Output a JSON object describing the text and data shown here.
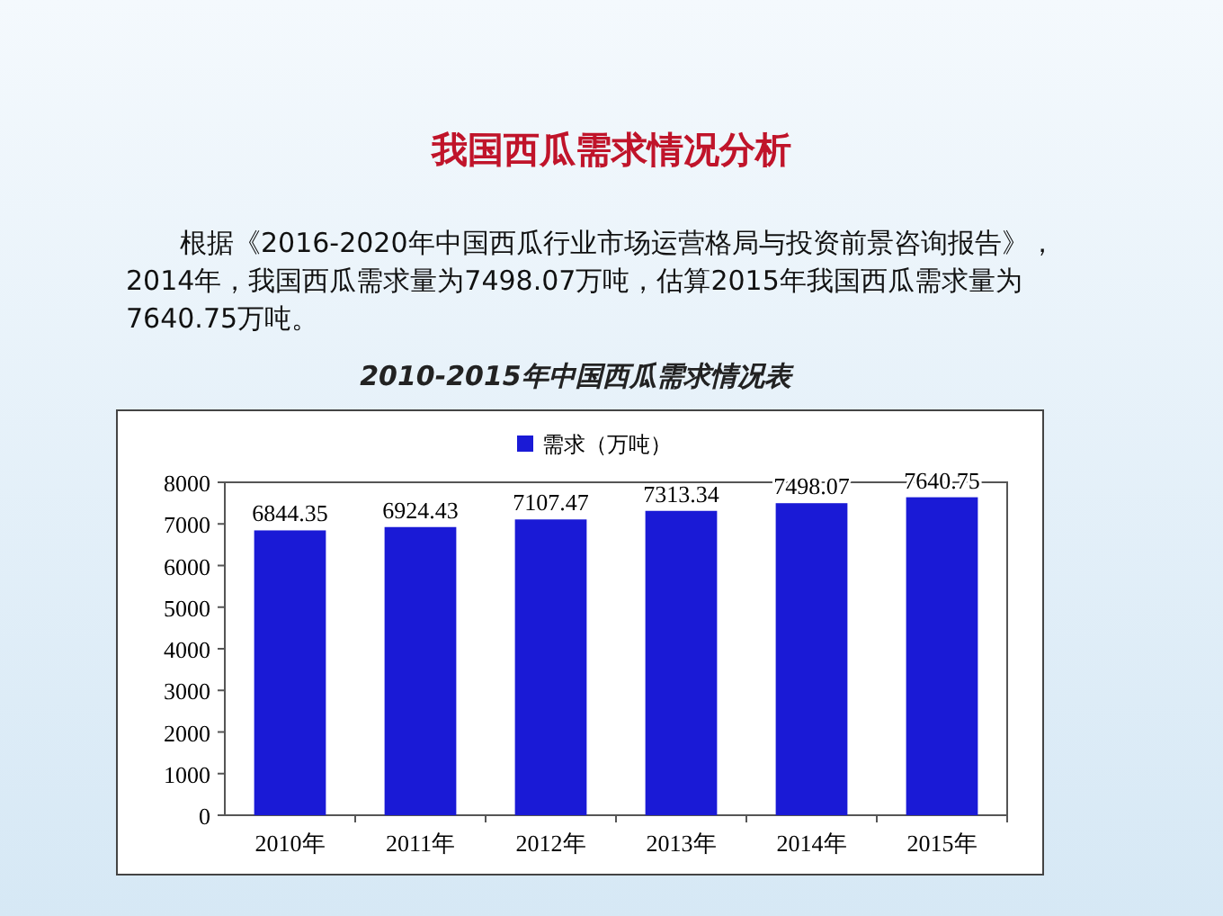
{
  "chart_data": {
    "type": "bar",
    "title": "我国西瓜需求情况分析",
    "subtitle": "2010-2015年中国西瓜需求情况表",
    "annotations": [
      "根据《2016-2020年中国西瓜行业市场运营格局与投资前景咨询报告》，2014年，我国西瓜需求量为7498.07万吨，估算2015年我国西瓜需求量为7640.75万吨。"
    ],
    "categories": [
      "2010年",
      "2011年",
      "2012年",
      "2013年",
      "2014年",
      "2015年"
    ],
    "series": [
      {
        "name": "需求（万吨）",
        "color": "#1a1ad6",
        "values": [
          6844.35,
          6924.43,
          7107.47,
          7313.34,
          7498.07,
          7640.75
        ]
      }
    ],
    "ylim": [
      0,
      8000
    ],
    "yticks": [
      0,
      1000,
      2000,
      3000,
      4000,
      5000,
      6000,
      7000,
      8000
    ],
    "legend": "top",
    "data_labels": true
  }
}
